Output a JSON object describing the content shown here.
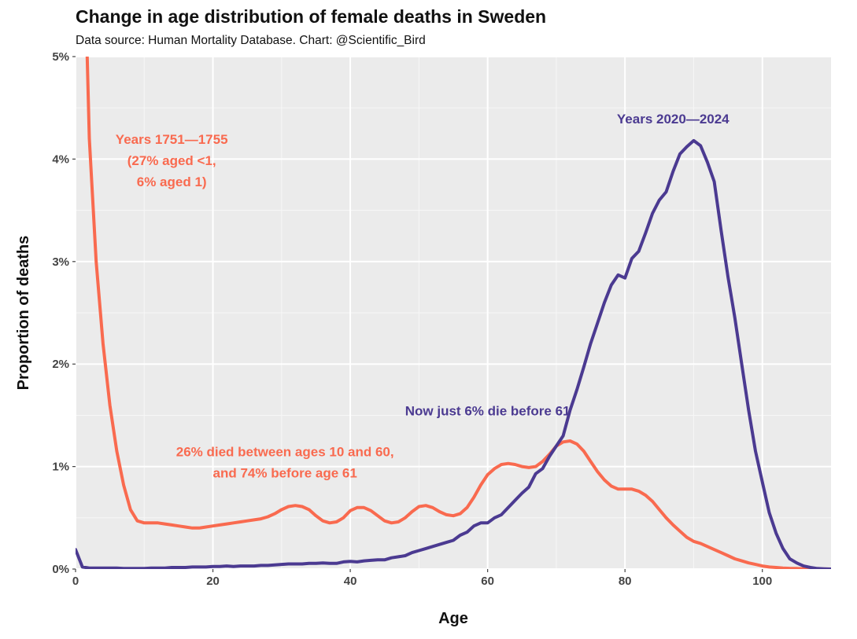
{
  "header": {
    "title": "Change in age distribution of female deaths in Sweden",
    "subtitle": "Data source: Human Mortality Database. Chart: @Scientific_Bird"
  },
  "chart_data": {
    "type": "line",
    "title": "Change in age distribution of female deaths in Sweden",
    "subtitle": "Data source: Human Mortality Database. Chart: @Scientific_Bird",
    "xlabel": "Age",
    "ylabel": "Proportion of deaths",
    "xlim": [
      0,
      110
    ],
    "ylim": [
      0,
      5
    ],
    "x_ticks": [
      0,
      20,
      40,
      60,
      80,
      100
    ],
    "x_tick_labels": [
      "0",
      "20",
      "40",
      "60",
      "80",
      "100"
    ],
    "y_ticks": [
      0,
      1,
      2,
      3,
      4,
      5
    ],
    "y_tick_labels": [
      "0%",
      "1%",
      "2%",
      "3%",
      "4%",
      "5%"
    ],
    "grid": true,
    "series": [
      {
        "name": "Years 1751—1755",
        "color": "#F96A4F",
        "x": [
          1.7,
          2,
          3,
          4,
          5,
          6,
          7,
          8,
          9,
          10,
          11,
          12,
          13,
          14,
          15,
          16,
          17,
          18,
          19,
          20,
          21,
          22,
          23,
          24,
          25,
          26,
          27,
          28,
          29,
          30,
          31,
          32,
          33,
          34,
          35,
          36,
          37,
          38,
          39,
          40,
          41,
          42,
          43,
          44,
          45,
          46,
          47,
          48,
          49,
          50,
          51,
          52,
          53,
          54,
          55,
          56,
          57,
          58,
          59,
          60,
          61,
          62,
          63,
          64,
          65,
          66,
          67,
          68,
          69,
          70,
          71,
          72,
          73,
          74,
          75,
          76,
          77,
          78,
          79,
          80,
          81,
          82,
          83,
          84,
          85,
          86,
          87,
          88,
          89,
          90,
          91,
          92,
          93,
          94,
          95,
          96,
          97,
          98,
          99,
          100,
          101,
          102,
          103,
          104,
          105,
          106,
          107,
          108,
          109,
          110
        ],
        "values": [
          5.0,
          4.2,
          3.0,
          2.2,
          1.6,
          1.15,
          0.82,
          0.58,
          0.47,
          0.45,
          0.45,
          0.45,
          0.44,
          0.43,
          0.42,
          0.41,
          0.4,
          0.4,
          0.41,
          0.42,
          0.43,
          0.44,
          0.45,
          0.46,
          0.47,
          0.48,
          0.49,
          0.51,
          0.54,
          0.58,
          0.61,
          0.62,
          0.61,
          0.58,
          0.52,
          0.47,
          0.45,
          0.46,
          0.5,
          0.57,
          0.6,
          0.6,
          0.57,
          0.52,
          0.47,
          0.45,
          0.46,
          0.5,
          0.56,
          0.61,
          0.62,
          0.6,
          0.56,
          0.53,
          0.52,
          0.54,
          0.6,
          0.7,
          0.82,
          0.92,
          0.98,
          1.02,
          1.03,
          1.02,
          1.0,
          0.99,
          1.0,
          1.05,
          1.12,
          1.2,
          1.24,
          1.25,
          1.22,
          1.15,
          1.05,
          0.95,
          0.87,
          0.81,
          0.78,
          0.78,
          0.78,
          0.76,
          0.72,
          0.66,
          0.58,
          0.5,
          0.43,
          0.37,
          0.31,
          0.27,
          0.25,
          0.22,
          0.19,
          0.16,
          0.13,
          0.1,
          0.08,
          0.06,
          0.045,
          0.03,
          0.02,
          0.015,
          0.01,
          0.007,
          0.005,
          0.003,
          0.002,
          0.001,
          0.0005,
          0.0
        ]
      },
      {
        "name": "Years 2020—2024",
        "color": "#4B3A91",
        "x": [
          0,
          1,
          2,
          3,
          4,
          5,
          6,
          7,
          8,
          9,
          10,
          11,
          12,
          13,
          14,
          15,
          16,
          17,
          18,
          19,
          20,
          21,
          22,
          23,
          24,
          25,
          26,
          27,
          28,
          29,
          30,
          31,
          32,
          33,
          34,
          35,
          36,
          37,
          38,
          39,
          40,
          41,
          42,
          43,
          44,
          45,
          46,
          47,
          48,
          49,
          50,
          51,
          52,
          53,
          54,
          55,
          56,
          57,
          58,
          59,
          60,
          61,
          62,
          63,
          64,
          65,
          66,
          67,
          68,
          69,
          70,
          71,
          72,
          73,
          74,
          75,
          76,
          77,
          78,
          79,
          80,
          81,
          82,
          83,
          84,
          85,
          86,
          87,
          88,
          89,
          90,
          91,
          92,
          93,
          94,
          95,
          96,
          97,
          98,
          99,
          100,
          101,
          102,
          103,
          104,
          105,
          106,
          107,
          108,
          109,
          110
        ],
        "values": [
          0.19,
          0.02,
          0.01,
          0.01,
          0.01,
          0.01,
          0.01,
          0.005,
          0.005,
          0.005,
          0.005,
          0.01,
          0.01,
          0.01,
          0.015,
          0.015,
          0.015,
          0.02,
          0.02,
          0.02,
          0.025,
          0.025,
          0.03,
          0.025,
          0.03,
          0.03,
          0.03,
          0.035,
          0.035,
          0.04,
          0.045,
          0.05,
          0.05,
          0.05,
          0.055,
          0.055,
          0.06,
          0.055,
          0.055,
          0.07,
          0.075,
          0.07,
          0.08,
          0.085,
          0.09,
          0.09,
          0.11,
          0.12,
          0.13,
          0.16,
          0.18,
          0.2,
          0.22,
          0.24,
          0.26,
          0.28,
          0.33,
          0.36,
          0.42,
          0.45,
          0.45,
          0.5,
          0.53,
          0.6,
          0.67,
          0.74,
          0.8,
          0.93,
          0.98,
          1.1,
          1.2,
          1.3,
          1.55,
          1.75,
          1.97,
          2.2,
          2.4,
          2.6,
          2.77,
          2.87,
          2.84,
          3.03,
          3.1,
          3.28,
          3.47,
          3.6,
          3.68,
          3.88,
          4.05,
          4.12,
          4.18,
          4.13,
          3.97,
          3.78,
          3.3,
          2.85,
          2.45,
          2.0,
          1.55,
          1.15,
          0.85,
          0.55,
          0.35,
          0.2,
          0.1,
          0.06,
          0.03,
          0.015,
          0.005,
          0.002,
          0.0
        ]
      }
    ],
    "annotations": [
      {
        "lines": [
          "Years 1751—1755",
          "(27% aged <1,",
          "6% aged 1)"
        ],
        "series": "Years 1751—1755",
        "x": 14,
        "y": 4.15
      },
      {
        "lines": [
          "26% died between ages 10 and 60,",
          "and 74% before age 61"
        ],
        "series": "Years 1751—1755",
        "x": 30.5,
        "y": 1.1
      },
      {
        "lines": [
          "Now just 6% die before 61"
        ],
        "series": "Years 2020—2024",
        "x": 60,
        "y": 1.5
      },
      {
        "lines": [
          "Years 2020—2024"
        ],
        "series": "Years 2020—2024",
        "x": 87,
        "y": 4.35
      }
    ]
  }
}
